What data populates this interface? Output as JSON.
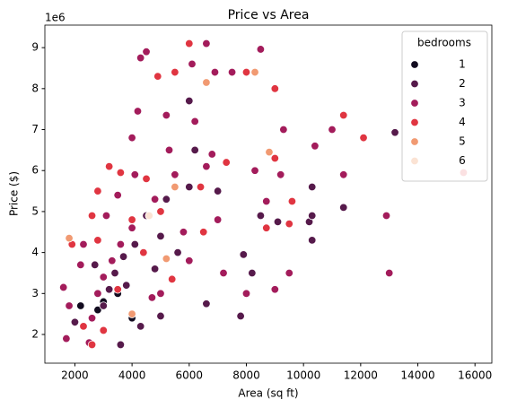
{
  "chart_data": {
    "type": "scatter",
    "title": "Price vs Area",
    "x_label": "Area (sq ft)",
    "y_label": "Price ($)",
    "y_offset_label": "1e6",
    "legend_title": "bedrooms",
    "legend": "upper right",
    "xlim": [
      950,
      16590
    ],
    "ylim": [
      1.3,
      9.55
    ],
    "xticks": [
      2000,
      4000,
      6000,
      8000,
      10000,
      12000,
      14000,
      16000
    ],
    "yticks": [
      2,
      3,
      4,
      5,
      6,
      7,
      8,
      9
    ],
    "series": [
      {
        "name": "1",
        "color": "#120b1f",
        "x": [
          3000,
          3600,
          2800,
          3500,
          4000,
          2200
        ],
        "values": [
          2.8,
          1.75,
          2.6,
          3.0,
          2.4,
          2.7
        ]
      },
      {
        "name": "2",
        "color": "#561a4b",
        "x": [
          13200,
          11400,
          10300,
          10300,
          10200,
          9100,
          7800,
          7900,
          6600,
          5000,
          4300,
          3600,
          3000,
          3200,
          3400,
          3700,
          4100,
          4500,
          5200,
          6000,
          6200,
          6000,
          5000,
          2700,
          2000,
          8500,
          7000,
          4800,
          3800,
          5600,
          10300,
          8200
        ],
        "values": [
          6.93,
          5.1,
          5.6,
          4.3,
          4.75,
          4.75,
          2.45,
          3.95,
          2.75,
          2.45,
          2.2,
          1.75,
          2.7,
          3.1,
          3.5,
          3.9,
          4.2,
          4.9,
          5.3,
          5.6,
          6.5,
          7.7,
          4.4,
          3.7,
          2.3,
          4.9,
          5.5,
          3.6,
          3.2,
          4.0,
          4.9,
          3.5
        ]
      },
      {
        "name": "3",
        "color": "#a31c5b",
        "x": [
          12900,
          13000,
          11400,
          11000,
          10400,
          9500,
          8500,
          7500,
          6600,
          5200,
          4500,
          4300,
          4200,
          6100,
          6900,
          2300,
          1700,
          1600,
          2500,
          2800,
          3000,
          3300,
          3600,
          4000,
          4100,
          4000,
          3500,
          3100,
          4800,
          5500,
          6200,
          6600,
          7000,
          7200,
          8000,
          9000,
          8700,
          8300,
          6000,
          5000,
          3000,
          2600,
          4700,
          2200,
          1800,
          5800,
          6800,
          5300,
          9300,
          9200
        ],
        "values": [
          4.9,
          3.5,
          5.9,
          7.0,
          6.6,
          3.5,
          8.96,
          8.4,
          9.1,
          7.35,
          8.9,
          8.75,
          7.45,
          8.6,
          8.4,
          4.2,
          1.9,
          3.15,
          1.8,
          3.0,
          3.4,
          3.8,
          4.2,
          4.6,
          5.9,
          6.8,
          5.4,
          4.9,
          5.3,
          5.9,
          7.2,
          6.1,
          4.8,
          3.5,
          3.0,
          3.1,
          5.25,
          6.0,
          3.8,
          3.0,
          2.1,
          2.4,
          2.9,
          3.7,
          2.7,
          4.5,
          6.4,
          6.5,
          7.0,
          5.9
        ]
      },
      {
        "name": "4",
        "color": "#e03541",
        "x": [
          15600,
          12100,
          11400,
          9600,
          9000,
          9000,
          8000,
          6000,
          5500,
          4900,
          3200,
          3600,
          2800,
          2600,
          1900,
          2800,
          2300,
          2600,
          3000,
          4000,
          4500,
          5000,
          6400,
          7300,
          8700,
          9500,
          6500,
          5400,
          3500,
          4400
        ],
        "values": [
          5.95,
          6.8,
          7.35,
          5.25,
          6.3,
          8.0,
          8.4,
          9.1,
          8.4,
          8.3,
          6.1,
          5.95,
          5.5,
          4.9,
          4.2,
          4.3,
          2.2,
          1.75,
          2.1,
          4.8,
          5.8,
          5.0,
          5.6,
          6.2,
          4.6,
          4.7,
          4.5,
          3.35,
          3.1,
          4.0
        ]
      },
      {
        "name": "5",
        "color": "#f19a72",
        "x": [
          6600,
          8300,
          8800,
          5500,
          1800,
          5200,
          4000
        ],
        "values": [
          8.15,
          8.4,
          6.45,
          5.6,
          4.35,
          3.85,
          2.5
        ]
      },
      {
        "name": "6",
        "color": "#fbe3d4",
        "x": [
          4600
        ],
        "values": [
          4.9
        ]
      }
    ]
  }
}
